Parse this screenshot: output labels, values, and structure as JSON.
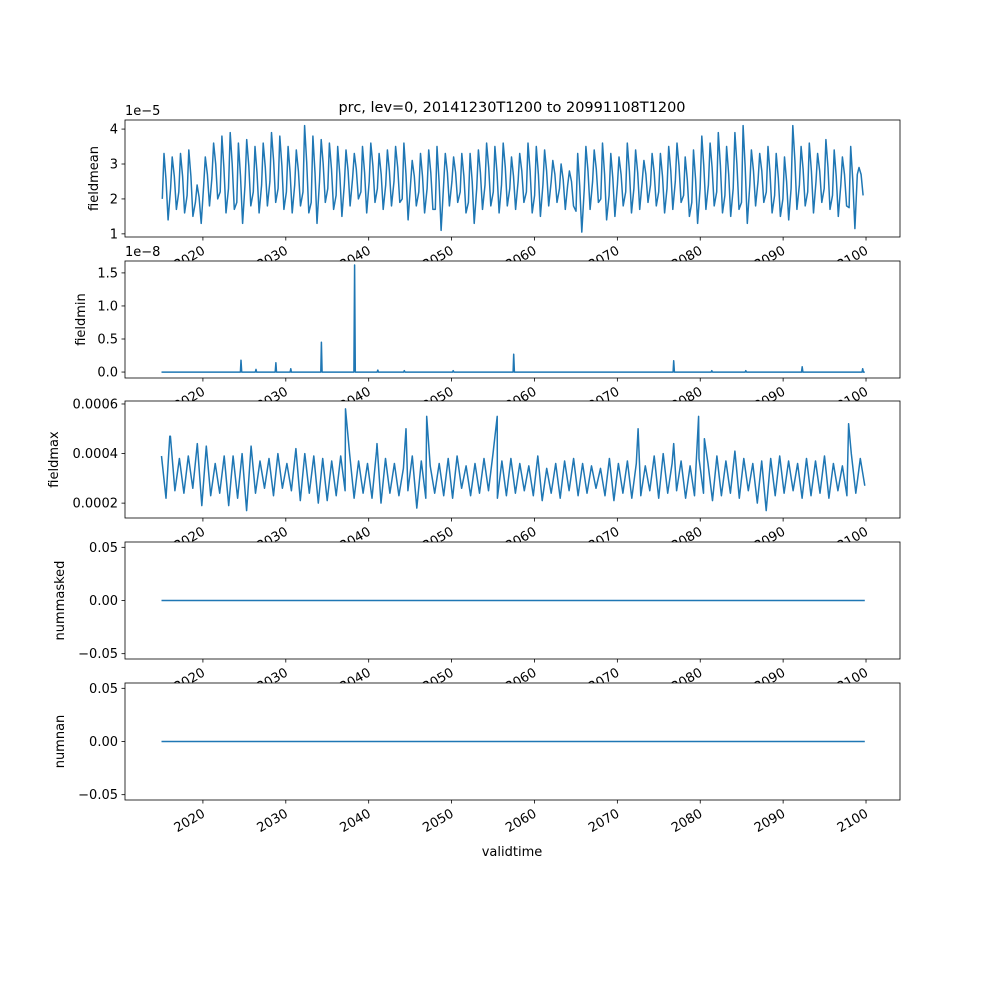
{
  "chart_data": {
    "type": "line",
    "title": "prc, lev=0, 20141230T1200 to 20991108T1200",
    "xlabel": "validtime",
    "xlim": [
      2010.6,
      2104.1
    ],
    "x_range": [
      2015.0,
      2099.85
    ],
    "xticks": [
      2020,
      2030,
      2040,
      2050,
      2060,
      2070,
      2080,
      2090,
      2100
    ],
    "xtick_labels": [
      "2020",
      "2030",
      "2040",
      "2050",
      "2060",
      "2070",
      "2080",
      "2090",
      "2100"
    ],
    "line_color": "#1f77b4",
    "grid": false,
    "panels": [
      {
        "ylabel": "fieldmean",
        "offset_text": "1e−5",
        "ylim": [
          0.91,
          4.26
        ],
        "yticks": [
          1,
          2,
          3,
          4
        ],
        "ytick_labels": [
          "1",
          "2",
          "3",
          "4"
        ],
        "kind": "peaks_troughs",
        "peaks": [
          3.3,
          3.2,
          3.3,
          3.4,
          2.4,
          3.2,
          3.6,
          3.8,
          3.9,
          3.6,
          3.7,
          3.5,
          3.6,
          3.9,
          3.8,
          3.5,
          3.4,
          4.1,
          3.8,
          3.7,
          3.6,
          3.5,
          3.4,
          3.3,
          3.5,
          3.6,
          3.3,
          3.4,
          3.5,
          3.6,
          3.1,
          3.3,
          3.4,
          3.5,
          3.3,
          3.2,
          3.3,
          3.3,
          3.4,
          3.6,
          3.5,
          3.6,
          3.2,
          3.3,
          3.6,
          3.5,
          3.4,
          3.1,
          3.0,
          2.8,
          3.3,
          3.5,
          3.4,
          3.6,
          3.3,
          3.2,
          3.6,
          3.4,
          3.1,
          3.3,
          3.3,
          3.5,
          3.6,
          3.2,
          3.4,
          3.8,
          3.6,
          3.9,
          3.5,
          3.9,
          4.1,
          3.4,
          3.3,
          3.5,
          3.3,
          3.2,
          4.1,
          3.5,
          3.6,
          3.3,
          3.7,
          3.4,
          3.2,
          3.5,
          2.9
        ],
        "troughs": [
          1.4,
          1.7,
          1.6,
          1.5,
          1.3,
          1.8,
          2.0,
          1.6,
          1.7,
          1.3,
          1.8,
          1.6,
          1.8,
          1.9,
          1.7,
          1.6,
          1.8,
          1.6,
          1.3,
          1.9,
          1.7,
          1.5,
          1.8,
          2.0,
          1.6,
          1.9,
          1.7,
          1.8,
          1.9,
          1.4,
          1.8,
          1.6,
          1.7,
          1.1,
          1.8,
          1.9,
          1.6,
          1.3,
          1.7,
          1.8,
          1.6,
          1.8,
          1.7,
          1.9,
          1.6,
          1.5,
          1.8,
          1.9,
          1.7,
          1.8,
          1.05,
          1.7,
          1.9,
          1.4,
          1.5,
          1.8,
          1.6,
          1.7,
          1.9,
          1.8,
          1.6,
          1.7,
          1.9,
          1.5,
          1.3,
          1.7,
          1.8,
          1.6,
          1.5,
          1.7,
          1.3,
          1.8,
          1.9,
          1.6,
          1.5,
          1.4,
          1.7,
          1.8,
          1.6,
          1.9,
          1.7,
          1.5,
          1.8,
          1.15,
          2.1
        ]
      },
      {
        "ylabel": "fieldmin",
        "offset_text": "1e−8",
        "ylim": [
          -0.09,
          1.68
        ],
        "yticks": [
          0,
          0.5,
          1.0,
          1.5
        ],
        "ytick_labels": [
          "0.0",
          "0.5",
          "1.0",
          "1.5"
        ],
        "kind": "spikes",
        "baseline": 0,
        "spikes": [
          [
            2024.6,
            0.18
          ],
          [
            2026.4,
            0.04
          ],
          [
            2028.8,
            0.14
          ],
          [
            2030.6,
            0.05
          ],
          [
            2034.3,
            0.45
          ],
          [
            2038.3,
            1.62
          ],
          [
            2041.1,
            0.03
          ],
          [
            2044.3,
            0.02
          ],
          [
            2050.2,
            0.02
          ],
          [
            2057.5,
            0.27
          ],
          [
            2076.8,
            0.17
          ],
          [
            2081.4,
            0.02
          ],
          [
            2085.5,
            0.02
          ],
          [
            2092.3,
            0.08
          ],
          [
            2099.6,
            0.05
          ]
        ]
      },
      {
        "ylabel": "fieldmax",
        "offset_text": "",
        "ylim": [
          0.00014,
          0.000612
        ],
        "yticks": [
          0.0002,
          0.0004,
          0.0006
        ],
        "ytick_labels": [
          "0.0002",
          "0.0004",
          "0.0006"
        ],
        "kind": "noisy",
        "unit_scale": 0.0001,
        "values": [
          3.9,
          2.2,
          4.7,
          2.5,
          3.8,
          2.4,
          3.9,
          2.6,
          4.4,
          1.9,
          4.3,
          2.3,
          3.6,
          2.4,
          3.9,
          1.9,
          3.9,
          2.2,
          4.0,
          1.7,
          4.3,
          2.4,
          3.7,
          2.6,
          3.8,
          2.3,
          4.0,
          2.6,
          3.6,
          2.5,
          4.2,
          2.1,
          4.0,
          2.4,
          3.9,
          2.0,
          3.8,
          2.1,
          3.7,
          2.3,
          3.9,
          2.5,
          4.0,
          2.2,
          3.7,
          2.4,
          3.6,
          2.2,
          4.1,
          2.0,
          3.8,
          2.4,
          3.6,
          2.3,
          3.4,
          2.5,
          3.9,
          1.8,
          3.7,
          2.2,
          3.5,
          2.4,
          3.6,
          2.3,
          3.8,
          2.2,
          3.9,
          2.6,
          3.5,
          2.3,
          3.6,
          2.4,
          3.8,
          2.5,
          4.0,
          2.2,
          3.7,
          2.3,
          3.8,
          2.4,
          3.6,
          2.5,
          3.5,
          2.3,
          3.9,
          2.1,
          3.4,
          2.4,
          3.6,
          2.2,
          3.7,
          2.5,
          3.8,
          2.3,
          3.6,
          2.4,
          3.5,
          2.6,
          3.4,
          2.3,
          3.8,
          2.1,
          3.6,
          2.4,
          3.7,
          2.2,
          3.6,
          2.3,
          3.5,
          2.5,
          3.9,
          2.2,
          4.0,
          2.4,
          3.6,
          2.5,
          3.7,
          2.2,
          3.5,
          2.3,
          3.8,
          2.4,
          3.6,
          2.1,
          3.9,
          2.3,
          3.7,
          2.4,
          4.1,
          2.2,
          3.8,
          2.5,
          3.6,
          2.0,
          3.7,
          1.7,
          3.8,
          2.3,
          3.9,
          2.4,
          3.7,
          2.5,
          3.6,
          2.2,
          3.8,
          2.3,
          3.7,
          2.4,
          3.9,
          2.2,
          3.6,
          2.5,
          3.5,
          2.3,
          4.0,
          2.4,
          3.8,
          2.7
        ],
        "spikes": [
          [
            2016.0,
            4.7
          ],
          [
            2037.2,
            5.8
          ],
          [
            2041.0,
            4.4
          ],
          [
            2044.5,
            5.0
          ],
          [
            2047.0,
            5.5
          ],
          [
            2055.5,
            5.5
          ],
          [
            2072.5,
            5.0
          ],
          [
            2076.8,
            4.4
          ],
          [
            2079.8,
            5.5
          ],
          [
            2080.5,
            4.6
          ],
          [
            2097.9,
            5.2
          ]
        ]
      },
      {
        "ylabel": "nummasked",
        "offset_text": "",
        "ylim": [
          -0.055,
          0.055
        ],
        "yticks": [
          -0.05,
          0.0,
          0.05
        ],
        "ytick_labels": [
          "−0.05",
          "0.00",
          "0.05"
        ],
        "kind": "constant",
        "value": 0
      },
      {
        "ylabel": "numnan",
        "offset_text": "",
        "ylim": [
          -0.055,
          0.055
        ],
        "yticks": [
          -0.05,
          0.0,
          0.05
        ],
        "ytick_labels": [
          "−0.05",
          "0.00",
          "0.05"
        ],
        "kind": "constant",
        "value": 0
      }
    ]
  }
}
